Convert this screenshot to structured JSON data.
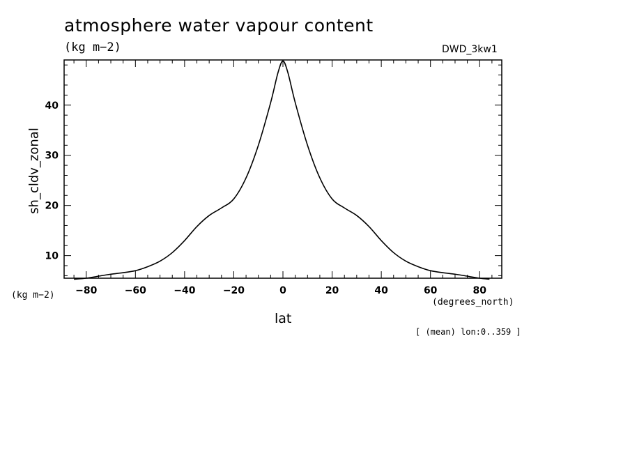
{
  "header": {
    "title": "atmosphere water vapour content",
    "units": "(kg m−2)",
    "model": "DWD_3kw1"
  },
  "axes": {
    "ylabel": "sh_cldv_zonal",
    "yunits": "(kg m−2)",
    "xlabel": "lat",
    "xunits": "(degrees_north)"
  },
  "footnote": "[ (mean) lon:0..359 ]",
  "chart_data": {
    "type": "line",
    "title": "atmosphere water vapour content",
    "xlabel": "lat",
    "ylabel": "sh_cldv_zonal",
    "xlim": [
      -89,
      89
    ],
    "ylim": [
      5.5,
      49
    ],
    "x_ticks": [
      -80,
      -60,
      -40,
      -20,
      0,
      20,
      40,
      60,
      80
    ],
    "x_tick_labels": [
      "−80",
      "−60",
      "−40",
      "−20",
      "0",
      "20",
      "40",
      "60",
      "80"
    ],
    "y_ticks": [
      10,
      20,
      30,
      40
    ],
    "y_tick_labels": [
      "10",
      "20",
      "30",
      "40"
    ],
    "grid": false,
    "series": [
      {
        "color": "#000000",
        "x": [
          -85,
          -80,
          -75,
          -70,
          -65,
          -60,
          -55,
          -50,
          -45,
          -40,
          -35,
          -30,
          -25,
          -20,
          -15,
          -10,
          -5,
          -2,
          0,
          2,
          5,
          10,
          15,
          20,
          25,
          30,
          35,
          40,
          45,
          50,
          55,
          60,
          65,
          70,
          75,
          80,
          84
        ],
        "y": [
          5.3,
          5.5,
          5.9,
          6.3,
          6.6,
          7.0,
          7.8,
          8.9,
          10.6,
          13.0,
          15.8,
          18.0,
          19.5,
          21.3,
          25.5,
          32.0,
          40.5,
          46.5,
          48.8,
          46.5,
          40.5,
          32.0,
          25.5,
          21.3,
          19.5,
          18.0,
          15.8,
          13.0,
          10.6,
          8.9,
          7.8,
          7.0,
          6.6,
          6.3,
          5.9,
          5.5,
          5.3
        ]
      }
    ]
  }
}
